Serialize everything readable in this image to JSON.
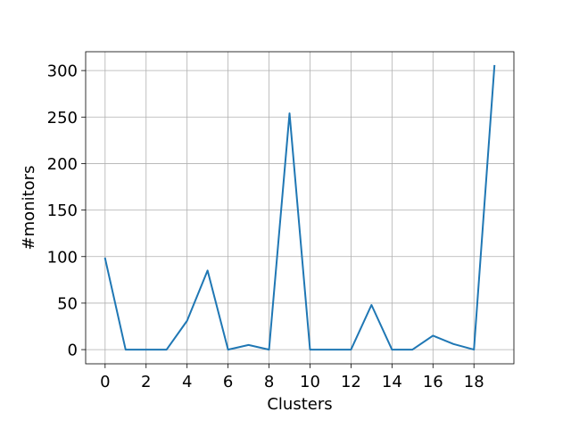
{
  "chart_data": {
    "type": "line",
    "title": "",
    "xlabel": "Clusters",
    "ylabel": "#monitors",
    "xlim": [
      -0.95,
      19.95
    ],
    "ylim": [
      -15.25,
      320.25
    ],
    "grid": true,
    "x_ticks": [
      0,
      2,
      4,
      6,
      8,
      10,
      12,
      14,
      16,
      18
    ],
    "y_ticks": [
      0,
      50,
      100,
      150,
      200,
      250,
      300
    ],
    "series": [
      {
        "name": "monitors",
        "color": "#1f77b4",
        "x": [
          0,
          1,
          2,
          3,
          4,
          5,
          6,
          7,
          8,
          9,
          10,
          11,
          12,
          13,
          14,
          15,
          16,
          17,
          18,
          19
        ],
        "values": [
          98,
          0,
          0,
          0,
          31,
          85,
          0,
          5,
          0,
          254,
          0,
          0,
          0,
          48,
          0,
          0,
          15,
          6,
          0,
          305
        ]
      }
    ]
  }
}
